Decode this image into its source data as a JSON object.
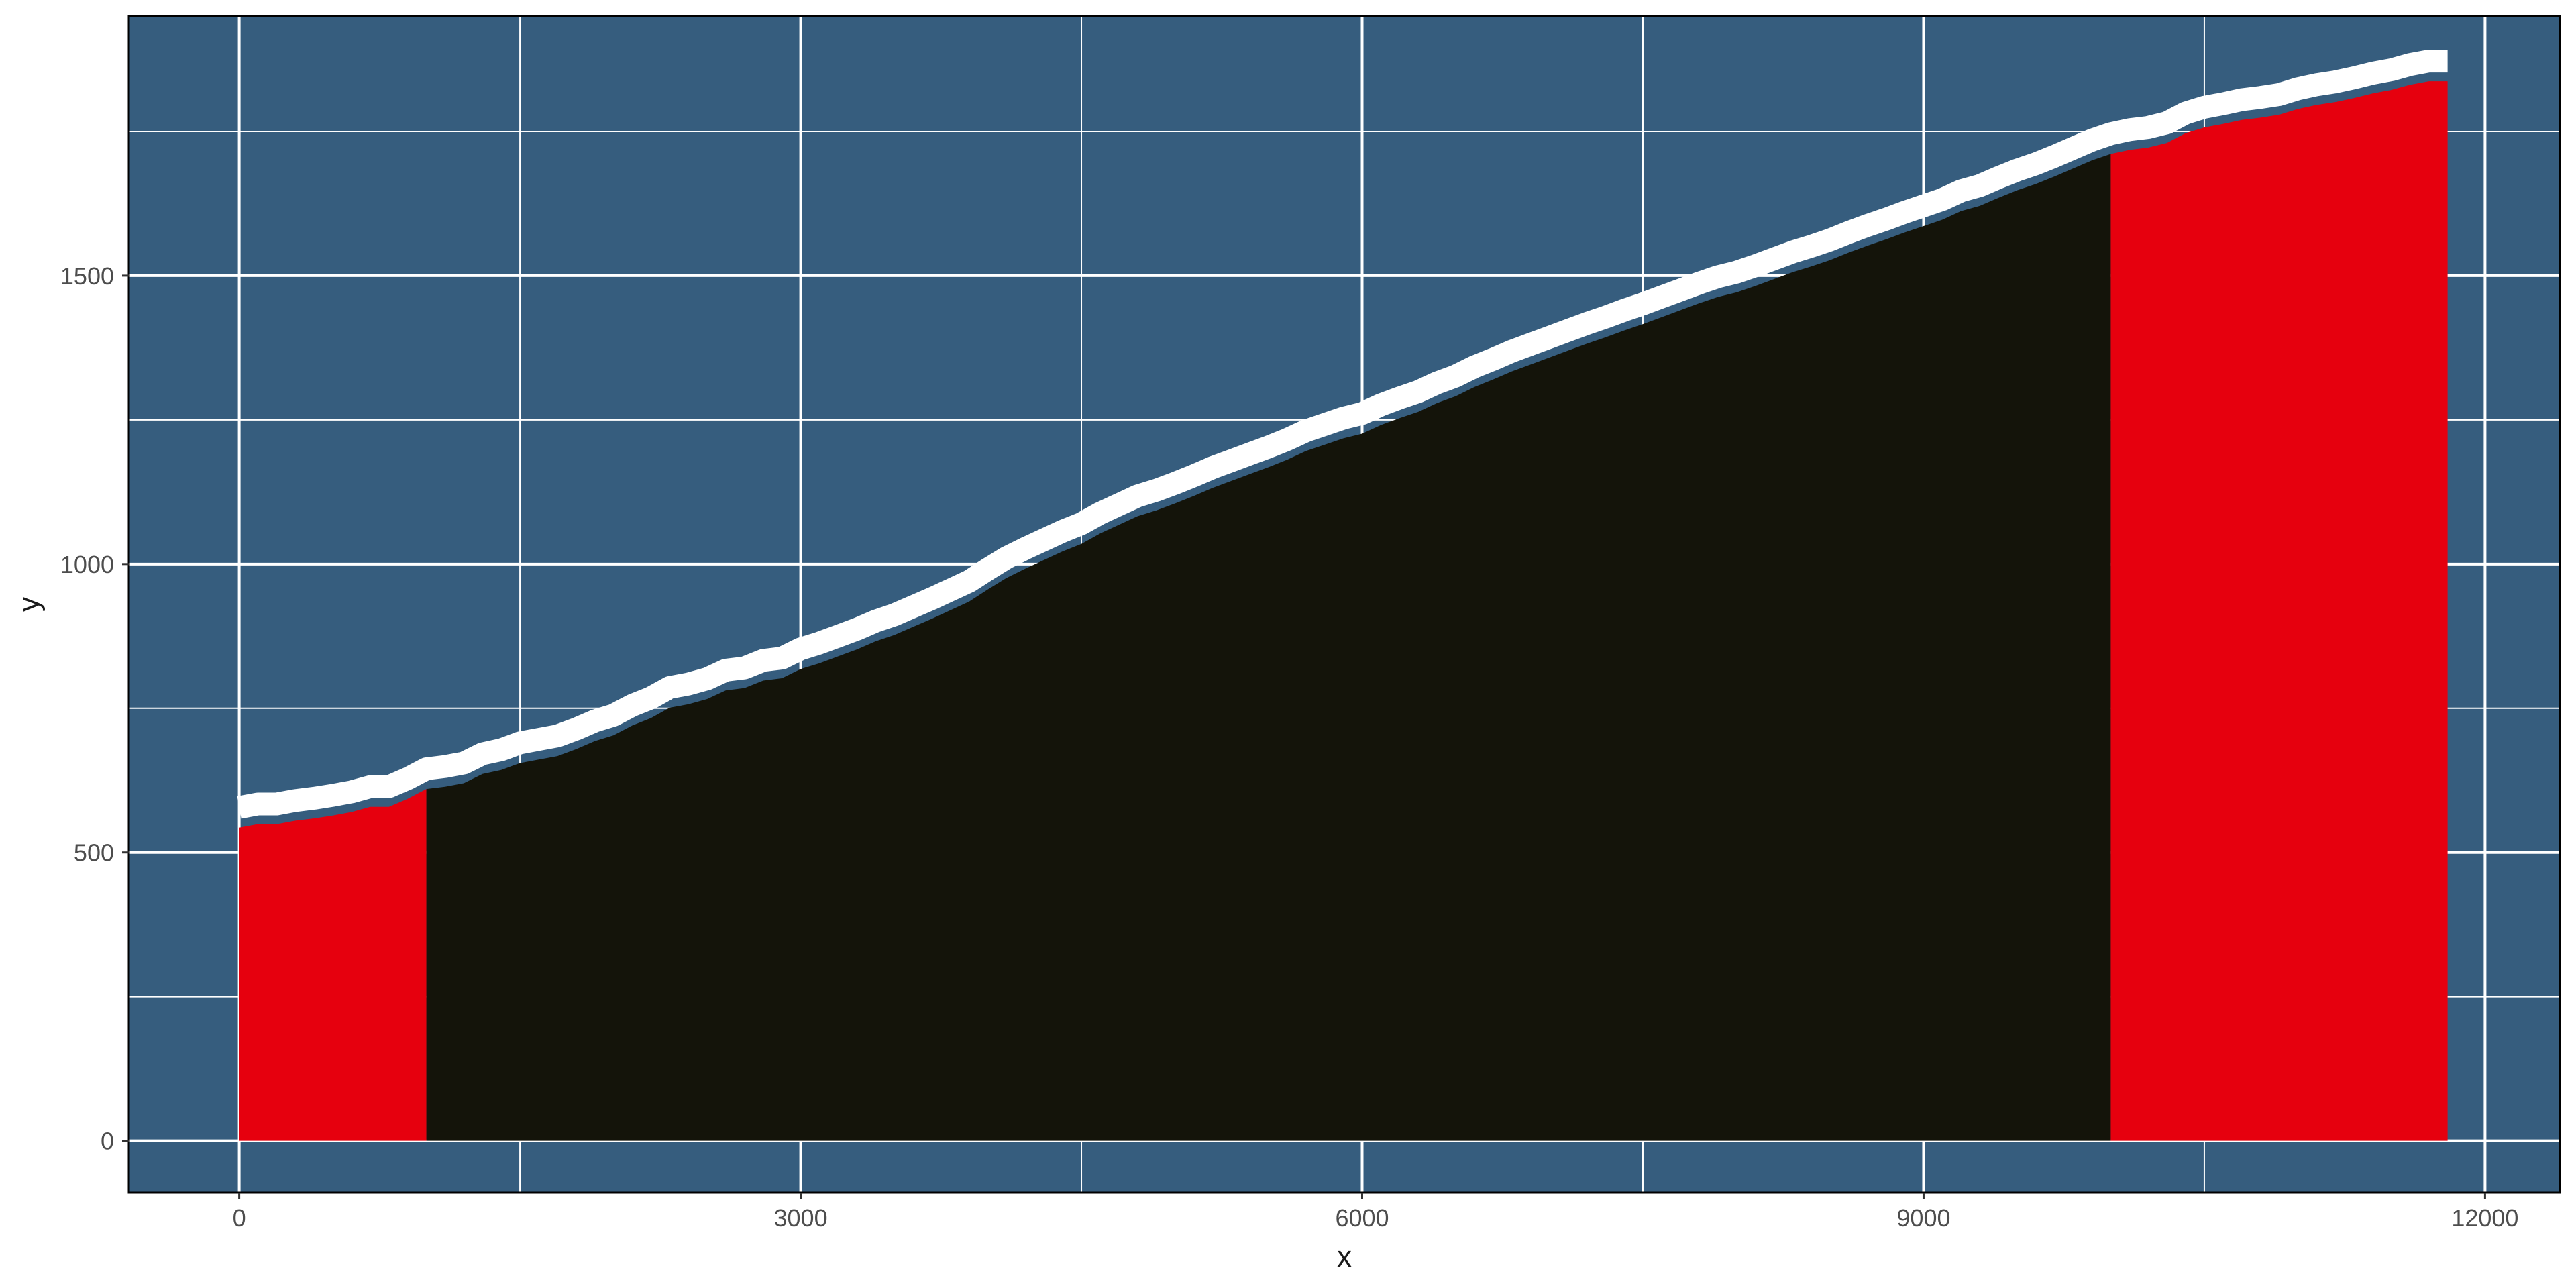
{
  "chart_data": {
    "type": "area",
    "title": "",
    "xlabel": "x",
    "ylabel": "y",
    "xlim": [
      -590,
      12400
    ],
    "ylim": [
      -90,
      1950
    ],
    "x_ticks": [
      0,
      3000,
      6000,
      9000,
      12000
    ],
    "y_ticks": [
      0,
      500,
      1000,
      1500
    ],
    "grid": true,
    "legend": "none",
    "colors": {
      "panel_background": "#365d7e",
      "grid_line": "#ffffff",
      "panel_border": "#000000",
      "line": "#ffffff",
      "area_middle": "#14140a",
      "area_edges": "#e6000e"
    },
    "series": [
      {
        "line_offset": 35,
        "segments": [
          {
            "x_start": 0,
            "x_end": 1000,
            "fill": "#e6000e"
          },
          {
            "x_start": 1000,
            "x_end": 10000,
            "fill": "#14140a"
          },
          {
            "x_start": 10000,
            "x_end": 11800,
            "fill": "#e6000e"
          }
        ],
        "x": [
          0,
          100,
          200,
          300,
          400,
          500,
          600,
          700,
          800,
          900,
          1000,
          1100,
          1200,
          1300,
          1400,
          1500,
          1600,
          1700,
          1800,
          1900,
          2000,
          2100,
          2200,
          2300,
          2400,
          2500,
          2600,
          2700,
          2800,
          2900,
          3000,
          3100,
          3200,
          3300,
          3400,
          3500,
          3600,
          3700,
          3800,
          3900,
          4000,
          4100,
          4200,
          4300,
          4400,
          4500,
          4600,
          4700,
          4800,
          4900,
          5000,
          5100,
          5200,
          5300,
          5400,
          5500,
          5600,
          5700,
          5800,
          5900,
          6000,
          6100,
          6200,
          6300,
          6400,
          6500,
          6600,
          6700,
          6800,
          6900,
          7000,
          7100,
          7200,
          7300,
          7400,
          7500,
          7600,
          7700,
          7800,
          7900,
          8000,
          8100,
          8200,
          8300,
          8400,
          8500,
          8600,
          8700,
          8800,
          8900,
          9000,
          9100,
          9200,
          9300,
          9400,
          9500,
          9600,
          9700,
          9800,
          9900,
          10000,
          10100,
          10200,
          10300,
          10400,
          10500,
          10600,
          10700,
          10800,
          10900,
          11000,
          11100,
          11200,
          11300,
          11400,
          11500,
          11600,
          11700,
          11800
        ],
        "y": [
          543,
          549,
          549,
          555,
          559,
          564,
          570,
          579,
          579,
          593,
          610,
          614,
          620,
          636,
          643,
          655,
          661,
          667,
          679,
          693,
          703,
          720,
          733,
          751,
          757,
          766,
          781,
          785,
          798,
          802,
          818,
          828,
          840,
          852,
          866,
          877,
          891,
          905,
          920,
          935,
          956,
          976,
          992,
          1007,
          1022,
          1035,
          1053,
          1068,
          1083,
          1093,
          1105,
          1118,
          1132,
          1144,
          1156,
          1168,
          1181,
          1196,
          1207,
          1218,
          1226,
          1241,
          1253,
          1264,
          1279,
          1291,
          1307,
          1320,
          1334,
          1346,
          1358,
          1370,
          1382,
          1393,
          1405,
          1416,
          1428,
          1440,
          1452,
          1463,
          1471,
          1482,
          1494,
          1506,
          1516,
          1527,
          1540,
          1552,
          1563,
          1575,
          1586,
          1597,
          1612,
          1621,
          1635,
          1648,
          1659,
          1672,
          1686,
          1700,
          1711,
          1718,
          1722,
          1730,
          1747,
          1757,
          1763,
          1770,
          1774,
          1779,
          1789,
          1796,
          1801,
          1808,
          1816,
          1822,
          1831,
          1837,
          1837
        ]
      }
    ]
  }
}
